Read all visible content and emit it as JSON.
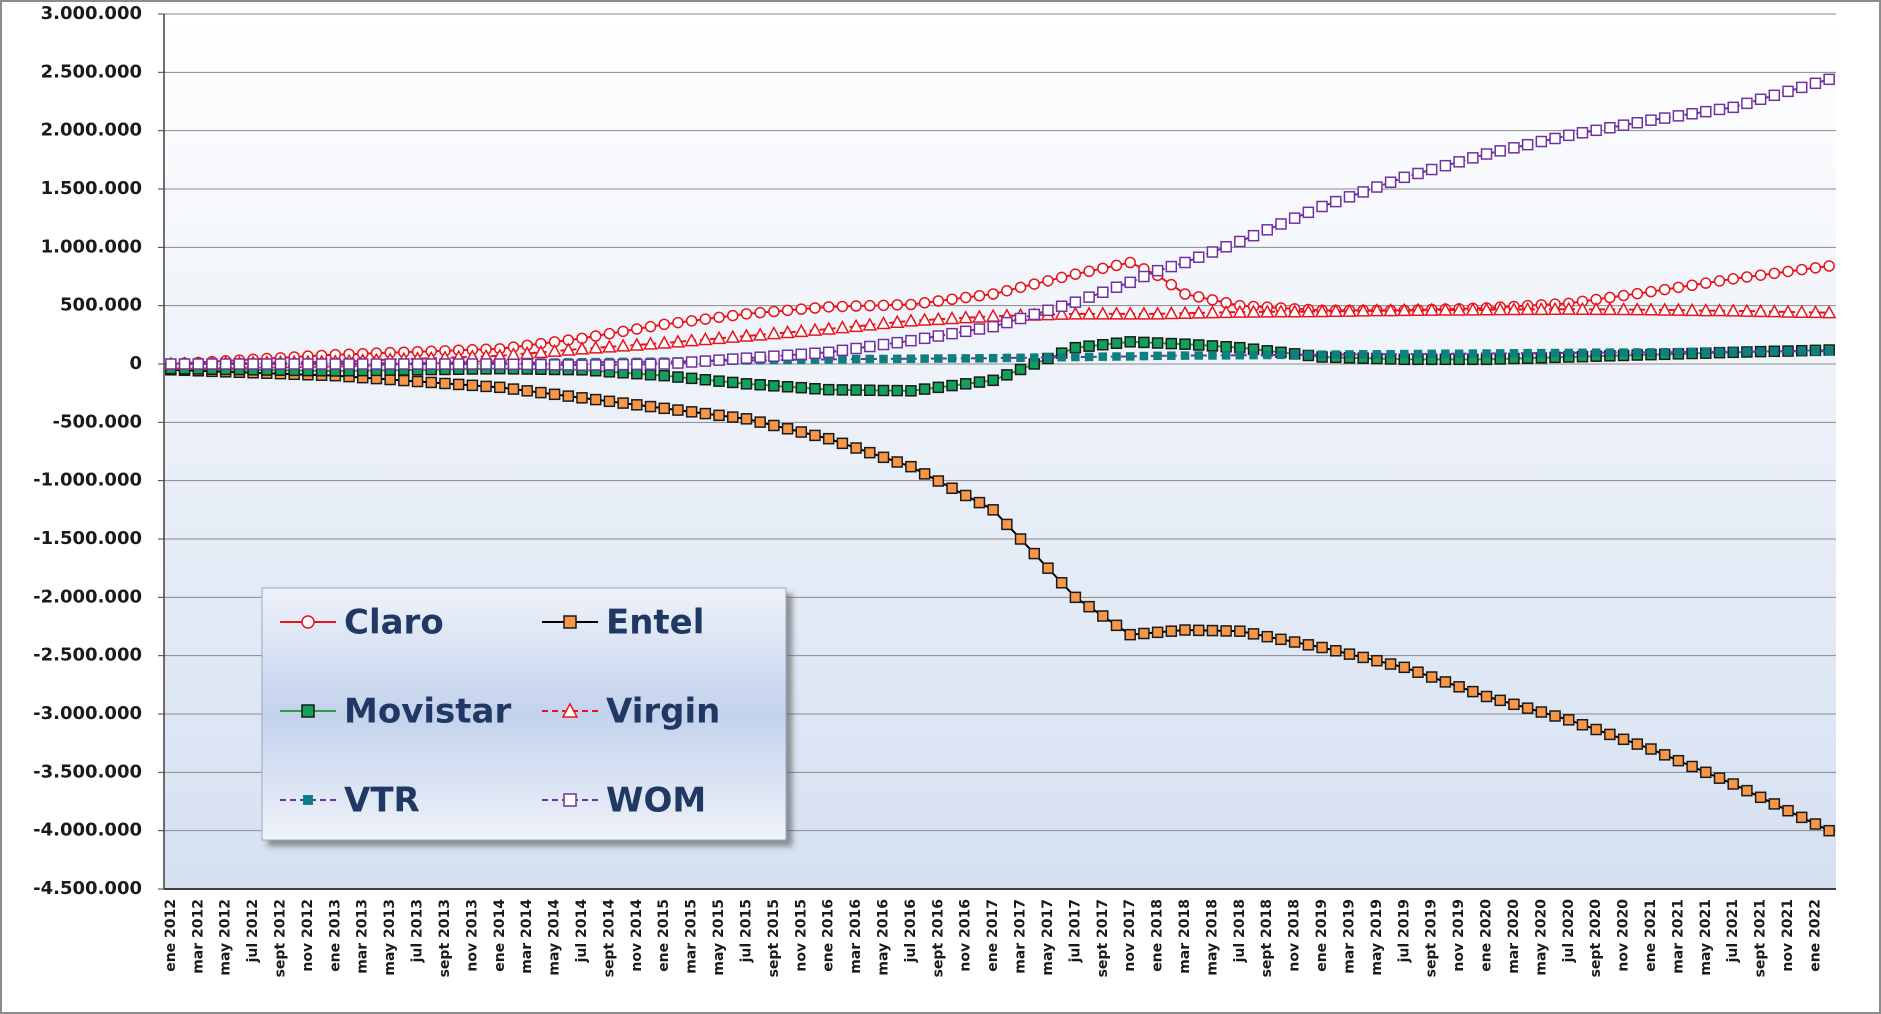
{
  "chart_data": {
    "type": "line",
    "categories": [
      "ene 2012",
      null,
      "mar 2012",
      null,
      "may 2012",
      null,
      "jul 2012",
      null,
      "sept 2012",
      null,
      "nov 2012",
      null,
      "ene 2013",
      null,
      "mar 2013",
      null,
      "may 2013",
      null,
      "jul 2013",
      null,
      "sept 2013",
      null,
      "nov 2013",
      null,
      "ene 2014",
      null,
      "mar 2014",
      null,
      "may 2014",
      null,
      "jul 2014",
      null,
      "sept 2014",
      null,
      "nov 2014",
      null,
      "ene 2015",
      null,
      "mar 2015",
      null,
      "may 2015",
      null,
      "jul 2015",
      null,
      "sept 2015",
      null,
      "nov 2015",
      null,
      "ene 2016",
      null,
      "mar 2016",
      null,
      "may 2016",
      null,
      "jul 2016",
      null,
      "sept 2016",
      null,
      "nov 2016",
      null,
      "ene 2017",
      null,
      "mar 2017",
      null,
      "may 2017",
      null,
      "jul 2017",
      null,
      "sept 2017",
      null,
      "nov 2017",
      null,
      "ene 2018",
      null,
      "mar 2018",
      null,
      "may 2018",
      null,
      "jul 2018",
      null,
      "sept 2018",
      null,
      "nov 2018",
      null,
      "ene 2019",
      null,
      "mar 2019",
      null,
      "may 2019",
      null,
      "jul 2019",
      null,
      "sept 2019",
      null,
      "nov 2019",
      null,
      "ene 2020",
      null,
      "mar 2020",
      null,
      "may 2020",
      null,
      "jul 2020",
      null,
      "sept 2020",
      null,
      "nov 2020",
      null,
      "ene 2021",
      null,
      "mar 2021",
      null,
      "may 2021",
      null,
      "jul 2021",
      null,
      "sept 2021",
      null,
      "nov 2021",
      null,
      "ene 2022",
      null
    ],
    "series": [
      {
        "name": "Claro",
        "color": "#e8141b",
        "line_style": "solid",
        "marker": "circle",
        "marker_fill": "#ffffff",
        "values": [
          0,
          7000,
          13000,
          20000,
          27000,
          33000,
          40000,
          47000,
          53000,
          60000,
          67000,
          73000,
          80000,
          84000,
          88000,
          93000,
          97000,
          101000,
          105000,
          109000,
          113000,
          118000,
          122000,
          126000,
          130000,
          145000,
          160000,
          175000,
          190000,
          205000,
          220000,
          240000,
          260000,
          280000,
          300000,
          320000,
          340000,
          355000,
          370000,
          385000,
          400000,
          415000,
          430000,
          440000,
          450000,
          460000,
          470000,
          480000,
          490000,
          493000,
          497000,
          500000,
          503000,
          507000,
          510000,
          525000,
          540000,
          555000,
          570000,
          585000,
          600000,
          628000,
          657000,
          685000,
          713000,
          742000,
          770000,
          795000,
          820000,
          845000,
          870000,
          815000,
          760000,
          680000,
          600000,
          575000,
          550000,
          525000,
          500000,
          493000,
          487000,
          480000,
          473000,
          467000,
          460000,
          460000,
          460000,
          460000,
          460000,
          460000,
          460000,
          463000,
          467000,
          470000,
          473000,
          477000,
          480000,
          487000,
          493000,
          500000,
          507000,
          513000,
          520000,
          537000,
          553000,
          570000,
          587000,
          603000,
          620000,
          638000,
          657000,
          675000,
          693000,
          712000,
          730000,
          746000,
          761000,
          777000,
          793000,
          809000,
          824000,
          840000
        ]
      },
      {
        "name": "Entel",
        "color": "#000000",
        "line_style": "solid",
        "marker": "square",
        "marker_fill": "#f79646",
        "values": [
          -50000,
          -54000,
          -58000,
          -63000,
          -67000,
          -71000,
          -75000,
          -79000,
          -83000,
          -88000,
          -92000,
          -96000,
          -100000,
          -108000,
          -117000,
          -125000,
          -133000,
          -142000,
          -150000,
          -158000,
          -167000,
          -175000,
          -183000,
          -192000,
          -200000,
          -215000,
          -230000,
          -245000,
          -260000,
          -275000,
          -290000,
          -305000,
          -320000,
          -335000,
          -350000,
          -365000,
          -380000,
          -395000,
          -410000,
          -425000,
          -440000,
          -455000,
          -470000,
          -498000,
          -527000,
          -555000,
          -583000,
          -612000,
          -640000,
          -680000,
          -720000,
          -760000,
          -800000,
          -840000,
          -880000,
          -942000,
          -1003000,
          -1065000,
          -1127000,
          -1188000,
          -1250000,
          -1375000,
          -1500000,
          -1625000,
          -1750000,
          -1875000,
          -2000000,
          -2080000,
          -2160000,
          -2240000,
          -2320000,
          -2310000,
          -2300000,
          -2290000,
          -2280000,
          -2283000,
          -2285000,
          -2288000,
          -2290000,
          -2313000,
          -2337000,
          -2360000,
          -2383000,
          -2407000,
          -2430000,
          -2458000,
          -2487000,
          -2515000,
          -2543000,
          -2572000,
          -2600000,
          -2642000,
          -2683000,
          -2725000,
          -2767000,
          -2808000,
          -2850000,
          -2883000,
          -2917000,
          -2950000,
          -2983000,
          -3017000,
          -3050000,
          -3092000,
          -3133000,
          -3175000,
          -3217000,
          -3258000,
          -3300000,
          -3350000,
          -3400000,
          -3450000,
          -3500000,
          -3550000,
          -3600000,
          -3657000,
          -3714000,
          -3771000,
          -3829000,
          -3886000,
          -3943000,
          -4000000
        ]
      },
      {
        "name": "Movistar",
        "color": "#2e9a4e",
        "line_style": "solid",
        "marker": "square",
        "marker_fill": "#13a05a",
        "values": [
          -40000,
          -42000,
          -43000,
          -45000,
          -47000,
          -48000,
          -50000,
          -52000,
          -53000,
          -55000,
          -57000,
          -58000,
          -60000,
          -58000,
          -57000,
          -55000,
          -53000,
          -52000,
          -50000,
          -48000,
          -47000,
          -45000,
          -43000,
          -42000,
          -40000,
          -42000,
          -43000,
          -45000,
          -47000,
          -48000,
          -50000,
          -58000,
          -67000,
          -75000,
          -83000,
          -92000,
          -100000,
          -112000,
          -123000,
          -135000,
          -147000,
          -158000,
          -170000,
          -178000,
          -187000,
          -195000,
          -203000,
          -212000,
          -220000,
          -222000,
          -223000,
          -225000,
          -227000,
          -228000,
          -230000,
          -215000,
          -200000,
          -185000,
          -170000,
          -155000,
          -140000,
          -93000,
          -47000,
          0,
          47000,
          93000,
          140000,
          153000,
          165000,
          178000,
          190000,
          185000,
          180000,
          175000,
          170000,
          163000,
          155000,
          148000,
          140000,
          127000,
          113000,
          100000,
          87000,
          73000,
          60000,
          57000,
          53000,
          50000,
          47000,
          43000,
          40000,
          40000,
          40000,
          40000,
          40000,
          40000,
          40000,
          43000,
          47000,
          50000,
          53000,
          57000,
          60000,
          63000,
          67000,
          70000,
          73000,
          77000,
          80000,
          83000,
          87000,
          90000,
          93000,
          97000,
          100000,
          103000,
          106000,
          109000,
          111000,
          114000,
          117000,
          120000
        ]
      },
      {
        "name": "Virgin",
        "color": "#e8141b",
        "line_style": "dashed",
        "marker": "triangle",
        "marker_fill": "#ffffff",
        "values": [
          0,
          2000,
          3000,
          5000,
          7000,
          8000,
          10000,
          12000,
          13000,
          15000,
          17000,
          18000,
          20000,
          24000,
          28000,
          33000,
          37000,
          41000,
          45000,
          49000,
          53000,
          58000,
          62000,
          66000,
          70000,
          80000,
          90000,
          100000,
          110000,
          120000,
          130000,
          138000,
          147000,
          155000,
          163000,
          172000,
          180000,
          190000,
          200000,
          210000,
          220000,
          230000,
          240000,
          250000,
          260000,
          270000,
          280000,
          290000,
          300000,
          312000,
          323000,
          335000,
          347000,
          358000,
          370000,
          377000,
          383000,
          390000,
          397000,
          403000,
          410000,
          413000,
          417000,
          420000,
          423000,
          427000,
          430000,
          430000,
          430000,
          430000,
          430000,
          430000,
          430000,
          433000,
          435000,
          438000,
          440000,
          443000,
          445000,
          446000,
          447000,
          448000,
          448000,
          449000,
          450000,
          452000,
          453000,
          455000,
          457000,
          458000,
          460000,
          461000,
          462000,
          463000,
          463000,
          464000,
          465000,
          466000,
          467000,
          468000,
          468000,
          469000,
          470000,
          469000,
          468000,
          468000,
          467000,
          466000,
          465000,
          463000,
          462000,
          460000,
          458000,
          457000,
          455000,
          453000,
          451000,
          449000,
          446000,
          444000,
          442000,
          440000
        ]
      },
      {
        "name": "VTR",
        "color": "#7030a0",
        "line_style": "dashed",
        "marker": "small-square",
        "marker_fill": "#0e7f80",
        "values": [
          0,
          0,
          1000,
          1000,
          2000,
          2000,
          3000,
          3000,
          3000,
          4000,
          4000,
          5000,
          5000,
          5000,
          6000,
          6000,
          7000,
          7000,
          8000,
          8000,
          8000,
          9000,
          9000,
          10000,
          10000,
          11000,
          12000,
          13000,
          13000,
          14000,
          15000,
          16000,
          17000,
          18000,
          18000,
          19000,
          20000,
          22000,
          23000,
          25000,
          27000,
          28000,
          30000,
          32000,
          33000,
          35000,
          37000,
          38000,
          40000,
          41000,
          42000,
          43000,
          43000,
          44000,
          45000,
          46000,
          47000,
          48000,
          48000,
          49000,
          50000,
          52000,
          53000,
          55000,
          57000,
          58000,
          60000,
          61000,
          63000,
          64000,
          65000,
          68000,
          70000,
          71000,
          72000,
          73000,
          73000,
          74000,
          75000,
          76000,
          77000,
          78000,
          78000,
          79000,
          80000,
          81000,
          82000,
          83000,
          83000,
          84000,
          85000,
          86000,
          87000,
          88000,
          88000,
          89000,
          90000,
          91000,
          92000,
          93000,
          93000,
          94000,
          95000,
          96000,
          97000,
          98000,
          98000,
          99000,
          100000,
          101000,
          102000,
          103000,
          103000,
          104000,
          105000,
          106000,
          106000,
          107000,
          108000,
          109000,
          109000,
          110000
        ]
      },
      {
        "name": "WOM",
        "color": "#7030a0",
        "line_style": "dashed",
        "marker": "square",
        "marker_fill": "#ffffff",
        "values": [
          0,
          0,
          0,
          0,
          0,
          0,
          0,
          0,
          0,
          0,
          0,
          0,
          0,
          0,
          0,
          0,
          0,
          0,
          0,
          0,
          0,
          0,
          0,
          0,
          0,
          -2000,
          -3000,
          -5000,
          -7000,
          -8000,
          -10000,
          -8000,
          -7000,
          -5000,
          -3000,
          -2000,
          0,
          8000,
          17000,
          25000,
          33000,
          42000,
          50000,
          58000,
          67000,
          75000,
          83000,
          92000,
          100000,
          117000,
          133000,
          150000,
          167000,
          183000,
          200000,
          220000,
          240000,
          260000,
          280000,
          300000,
          320000,
          355000,
          390000,
          425000,
          460000,
          495000,
          530000,
          573000,
          615000,
          658000,
          700000,
          750000,
          800000,
          835000,
          870000,
          915000,
          960000,
          1005000,
          1050000,
          1100000,
          1150000,
          1200000,
          1250000,
          1300000,
          1350000,
          1392000,
          1433000,
          1475000,
          1517000,
          1558000,
          1600000,
          1633000,
          1667000,
          1700000,
          1733000,
          1767000,
          1800000,
          1827000,
          1853000,
          1880000,
          1907000,
          1933000,
          1960000,
          1982000,
          2003000,
          2025000,
          2047000,
          2068000,
          2090000,
          2108000,
          2127000,
          2145000,
          2163000,
          2182000,
          2200000,
          2234000,
          2269000,
          2303000,
          2337000,
          2371000,
          2406000,
          2440000
        ]
      }
    ],
    "ylim": [
      -4500000,
      3000000
    ],
    "yticks": [
      {
        "value": -4500000,
        "label": "-4.500.000"
      },
      {
        "value": -4000000,
        "label": "-4.000.000"
      },
      {
        "value": -3500000,
        "label": "-3.500.000"
      },
      {
        "value": -3000000,
        "label": "-3.000.000"
      },
      {
        "value": -2500000,
        "label": "-2.500.000"
      },
      {
        "value": -2000000,
        "label": "-2.000.000"
      },
      {
        "value": -1500000,
        "label": "-1.500.000"
      },
      {
        "value": -1000000,
        "label": "-1.000.000"
      },
      {
        "value": -500000,
        "label": "-500.000"
      },
      0,
      {
        "value": 500000,
        "label": "500.000"
      },
      {
        "value": 1000000,
        "label": "1.000.000"
      },
      {
        "value": 1500000,
        "label": "1.500.000"
      },
      {
        "value": 2000000,
        "label": "2.000.000"
      },
      {
        "value": 2500000,
        "label": "2.500.000"
      },
      {
        "value": 3000000,
        "label": "3.000.000"
      }
    ],
    "grid": true,
    "legend": "lower left"
  }
}
